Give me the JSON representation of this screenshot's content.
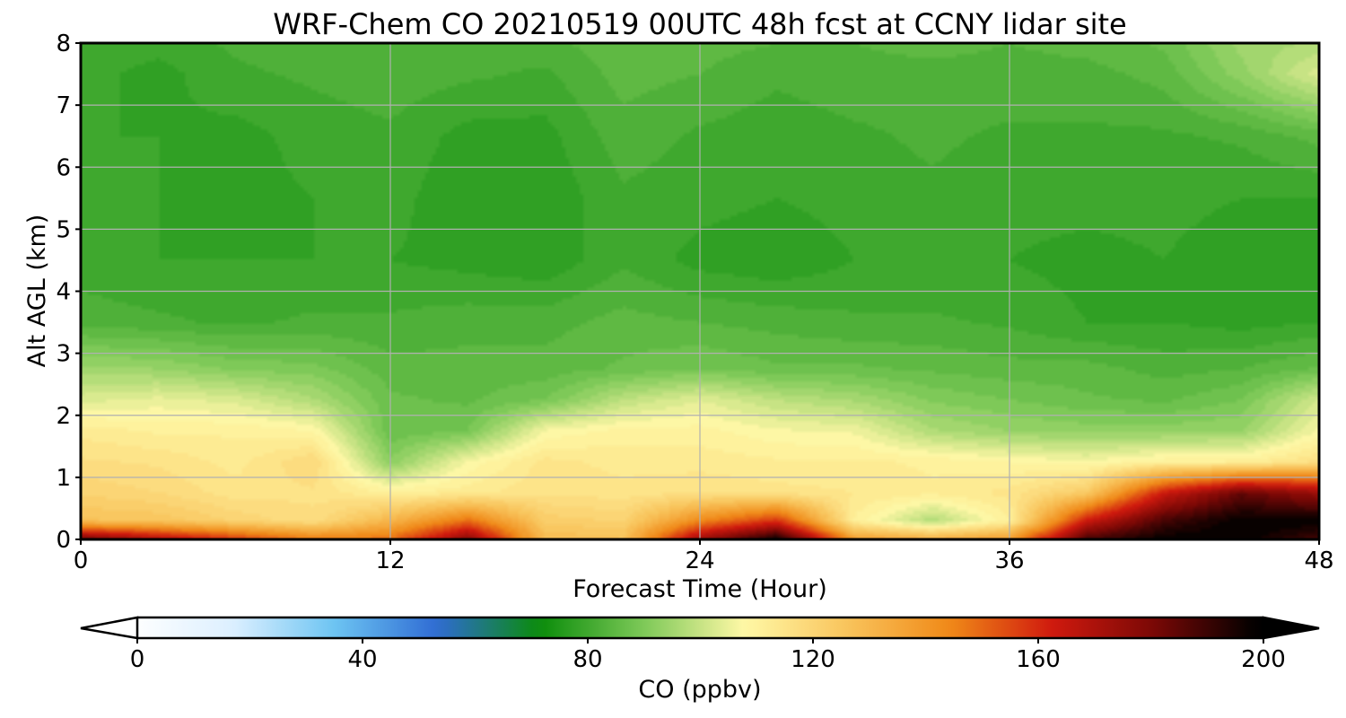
{
  "chart_data": {
    "type": "heatmap",
    "title": "WRF-Chem CO  20210519 00UTC 48h fcst at CCNY lidar site",
    "xlabel": "Forecast Time (Hour)",
    "ylabel": "Alt AGL (km)",
    "xlim": [
      0,
      48
    ],
    "ylim": [
      0,
      8
    ],
    "x_ticks": [
      0,
      12,
      24,
      36,
      48
    ],
    "y_ticks": [
      0,
      1,
      2,
      3,
      4,
      5,
      6,
      7,
      8
    ],
    "grid": true,
    "x_hours": [
      0,
      3,
      6,
      9,
      12,
      15,
      18,
      21,
      24,
      27,
      30,
      33,
      36,
      39,
      42,
      45,
      48
    ],
    "y_km": [
      0,
      0.3,
      0.75,
      1.25,
      1.75,
      2.25,
      2.75,
      3.5,
      4.5,
      5.5,
      6.5,
      7.5,
      8
    ],
    "values_ppbv": [
      [
        185,
        172,
        160,
        148,
        150,
        180,
        130,
        128,
        175,
        200,
        140,
        135,
        140,
        190,
        200,
        200,
        190
      ],
      [
        128,
        127,
        122,
        118,
        132,
        150,
        124,
        122,
        145,
        160,
        112,
        98,
        112,
        165,
        190,
        200,
        200
      ],
      [
        122,
        120,
        116,
        117,
        112,
        114,
        117,
        116,
        117,
        116,
        115,
        113,
        116,
        125,
        165,
        185,
        175
      ],
      [
        118,
        117,
        114,
        120,
        93,
        108,
        116,
        114,
        114,
        113,
        113,
        112,
        110,
        108,
        112,
        112,
        118
      ],
      [
        114,
        112,
        112,
        110,
        88,
        90,
        108,
        111,
        111,
        108,
        107,
        98,
        95,
        94,
        94,
        95,
        108
      ],
      [
        104,
        106,
        104,
        98,
        88,
        87,
        90,
        100,
        105,
        100,
        97,
        92,
        90,
        88,
        87,
        90,
        103
      ],
      [
        96,
        95,
        92,
        91,
        86,
        86,
        86,
        88,
        90,
        88,
        88,
        87,
        86,
        86,
        84,
        85,
        88
      ],
      [
        84,
        83,
        82,
        83,
        83,
        84,
        84,
        86,
        85,
        84,
        83,
        83,
        82,
        80,
        80,
        79,
        80
      ],
      [
        81,
        80,
        80,
        80,
        80,
        79,
        78,
        82,
        79,
        78,
        80,
        80,
        80,
        79,
        80,
        78,
        78
      ],
      [
        80,
        80,
        79,
        80,
        81,
        78,
        78,
        82,
        81,
        80,
        81,
        82,
        81,
        81,
        81,
        80,
        80
      ],
      [
        80,
        80,
        79,
        81,
        82,
        79,
        79,
        84,
        82,
        81,
        82,
        83,
        82,
        82,
        82,
        83,
        86
      ],
      [
        81,
        79,
        82,
        83,
        84,
        83,
        82,
        86,
        85,
        83,
        84,
        84,
        84,
        84,
        86,
        94,
        104
      ],
      [
        82,
        81,
        83,
        84,
        85,
        84,
        84,
        87,
        86,
        85,
        85,
        86,
        85,
        86,
        88,
        96,
        98
      ]
    ],
    "colorbar": {
      "label": "CO  (ppbv)",
      "min": 0,
      "max": 200,
      "ticks": [
        0,
        40,
        80,
        120,
        160,
        200
      ],
      "extend": "both",
      "colors": [
        "#ffffff",
        "#dcefff",
        "#6cc4f2",
        "#2f6bd3",
        "#0a8c0a",
        "#7cc857",
        "#fff8a6",
        "#f9c45c",
        "#f08a18",
        "#d01a0e",
        "#7a0806",
        "#000000"
      ]
    }
  }
}
